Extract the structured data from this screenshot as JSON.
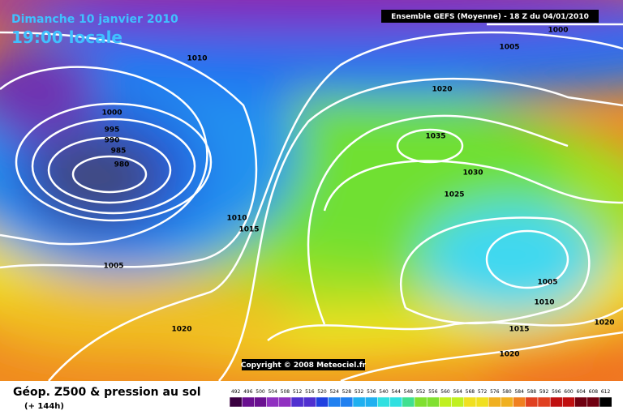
{
  "header": {
    "date": "Dimanche 10 janvier 2010",
    "time": "19:00 locale",
    "run": "Ensemble GEFS (Moyenne)  - 18 Z du 04/01/2010"
  },
  "isobar_labels": [
    "1000",
    "1005",
    "1010",
    "1020",
    "1000",
    "995",
    "990",
    "985",
    "980",
    "1035",
    "1030",
    "1025",
    "1010",
    "1015",
    "1005",
    "1005",
    "1010",
    "1020",
    "1015",
    "1020",
    "1020"
  ],
  "copyright": "Copyright © 2008 Meteociel.fr",
  "footer": {
    "title": "Géop. Z500 & pression au sol",
    "lead": "(+ 144h)"
  },
  "scale": [
    492,
    496,
    500,
    504,
    508,
    512,
    516,
    520,
    524,
    528,
    532,
    536,
    540,
    544,
    548,
    552,
    556,
    560,
    564,
    568,
    572,
    576,
    580,
    584,
    588,
    592,
    596,
    600,
    604,
    608,
    612
  ]
}
